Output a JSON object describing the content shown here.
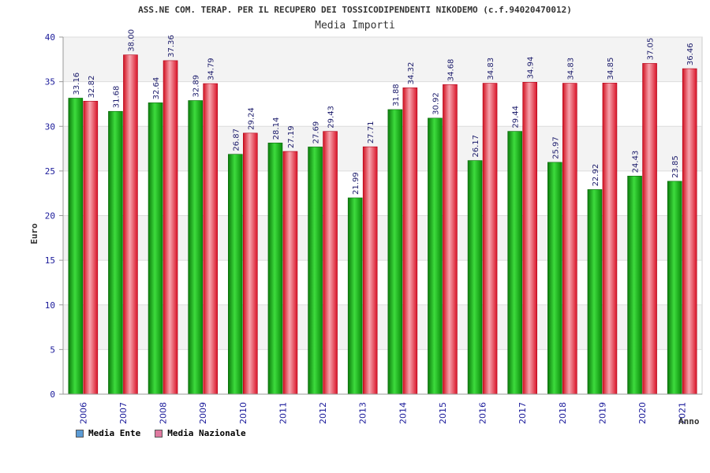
{
  "chart_data": {
    "type": "bar",
    "title": "ASS.NE COM. TERAP. PER IL RECUPERO DEI TOSSICODIPENDENTI NIKODEMO (c.f.94020470012)",
    "subtitle": "Media Importi",
    "xlabel": "Anno",
    "ylabel": "Euro",
    "ylim": [
      0,
      40
    ],
    "yticks": [
      "0",
      "5",
      "10",
      "15",
      "20",
      "25",
      "30",
      "35",
      "40"
    ],
    "categories": [
      "2006",
      "2007",
      "2008",
      "2009",
      "2010",
      "2011",
      "2012",
      "2013",
      "2014",
      "2015",
      "2016",
      "2017",
      "2018",
      "2019",
      "2020",
      "2021"
    ],
    "series": [
      {
        "name": "Media Ente",
        "color": "#1aa51a",
        "values": [
          33.16,
          31.68,
          32.64,
          32.89,
          26.87,
          28.14,
          27.69,
          21.99,
          31.88,
          30.92,
          26.17,
          29.44,
          25.97,
          22.92,
          24.43,
          23.85
        ],
        "labels": [
          "33.16",
          "31.68",
          "32.64",
          "32.89",
          "26.87",
          "28.14",
          "27.69",
          "21.99",
          "31.88",
          "30.92",
          "26.17",
          "29.44",
          "25.97",
          "22.92",
          "24.43",
          "23.85"
        ]
      },
      {
        "name": "Media Nazionale",
        "color": "#e8182d",
        "values": [
          32.82,
          38.0,
          37.36,
          34.79,
          29.24,
          27.19,
          29.43,
          27.71,
          34.32,
          34.68,
          34.83,
          34.94,
          34.83,
          34.85,
          37.05,
          36.46
        ],
        "labels": [
          "32.82",
          "38.00",
          "37.36",
          "34.79",
          "29.24",
          "27.19",
          "29.43",
          "27.71",
          "34.32",
          "34.68",
          "34.83",
          "34.94",
          "34.83",
          "34.85",
          "37.05",
          "36.46"
        ]
      }
    ],
    "legend": [
      {
        "name": "Media Ente",
        "color": "#5b9bd5"
      },
      {
        "name": "Media Nazionale",
        "color": "#e07aa0"
      }
    ],
    "legend_position": "bottom-left",
    "grid": true
  }
}
